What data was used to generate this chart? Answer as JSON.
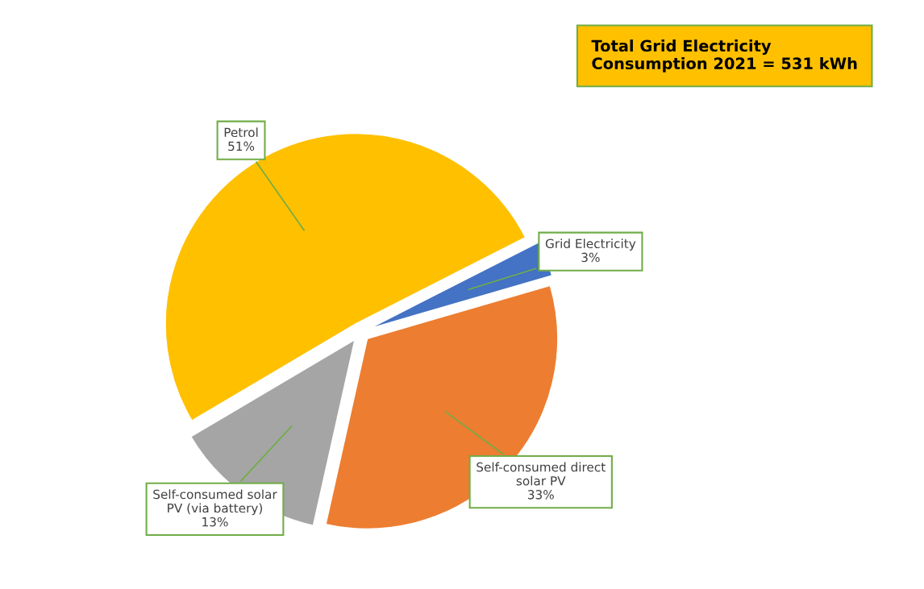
{
  "chart_data": {
    "type": "pie",
    "title": "Total Grid Electricity Consumption 2021 = 531 kWh",
    "categories": [
      "Grid Electricity",
      "Self-consumed direct solar PV",
      "Self-consumed solar PV (via battery)",
      "Petrol"
    ],
    "values": [
      3,
      33,
      13,
      51
    ],
    "value_labels": [
      "3%",
      "33%",
      "13%",
      "51%"
    ],
    "colors": [
      "#4472c4",
      "#ed7d31",
      "#a5a5a5",
      "#ffc000"
    ],
    "legend": false
  }
}
